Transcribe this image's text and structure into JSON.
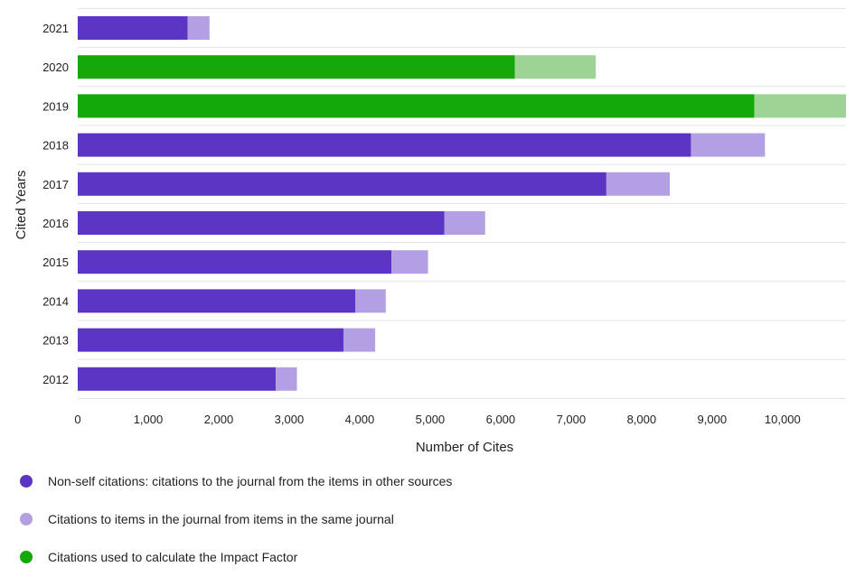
{
  "chart_data": {
    "type": "bar",
    "orientation": "horizontal",
    "stacked": true,
    "xlabel": "Number of Cites",
    "ylabel": "Cited Years",
    "xlim": [
      0,
      10900
    ],
    "xticks": [
      0,
      1000,
      2000,
      3000,
      4000,
      5000,
      6000,
      7000,
      8000,
      9000,
      10000
    ],
    "xtick_labels": [
      "0",
      "1,000",
      "2,000",
      "3,000",
      "4,000",
      "5,000",
      "6,000",
      "7,000",
      "8,000",
      "9,000",
      "10,000"
    ],
    "grid": "horizontal",
    "legend_position": "bottom-left",
    "categories": [
      "2021",
      "2020",
      "2019",
      "2018",
      "2017",
      "2016",
      "2015",
      "2014",
      "2013",
      "2012"
    ],
    "impact_factor_years": [
      "2020",
      "2019"
    ],
    "series": [
      {
        "name": "Non-self citations: citations to the journal from the items in other sources",
        "color": "#5c35c4",
        "if_color": "#14a80a",
        "values": [
          1560,
          6200,
          9600,
          8700,
          7500,
          5200,
          4450,
          3940,
          3770,
          2810
        ]
      },
      {
        "name": "Citations to items in the journal from items in the same journal",
        "color": "#b39fe3",
        "if_color": "#9dd495",
        "values": [
          310,
          1150,
          1400,
          1050,
          900,
          580,
          520,
          430,
          450,
          300
        ]
      }
    ],
    "legend": [
      {
        "label": "Non-self citations: citations to the journal from the items in other sources",
        "color": "#5c35c4"
      },
      {
        "label": "Citations to items in the journal from items in the same journal",
        "color": "#b39fe3"
      },
      {
        "label": "Citations used to calculate the Impact Factor",
        "color": "#14a80a"
      }
    ]
  }
}
